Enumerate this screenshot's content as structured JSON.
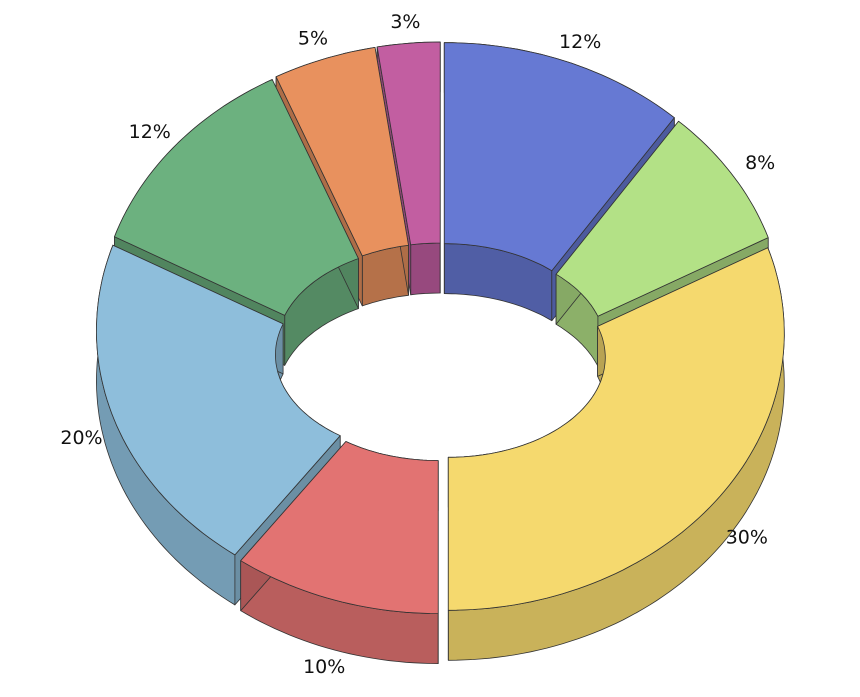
{
  "chart_data": {
    "type": "donut",
    "values": [
      12,
      8,
      30,
      10,
      20,
      12,
      5,
      3
    ],
    "value_labels": [
      "12%",
      "8%",
      "30%",
      "10%",
      "20%",
      "12%",
      "5%",
      "3%"
    ],
    "colors": [
      "#6679d3",
      "#b3e186",
      "#f5d96e",
      "#e27372",
      "#8ebedb",
      "#6cb17f",
      "#e8915e",
      "#c25ea1"
    ]
  }
}
